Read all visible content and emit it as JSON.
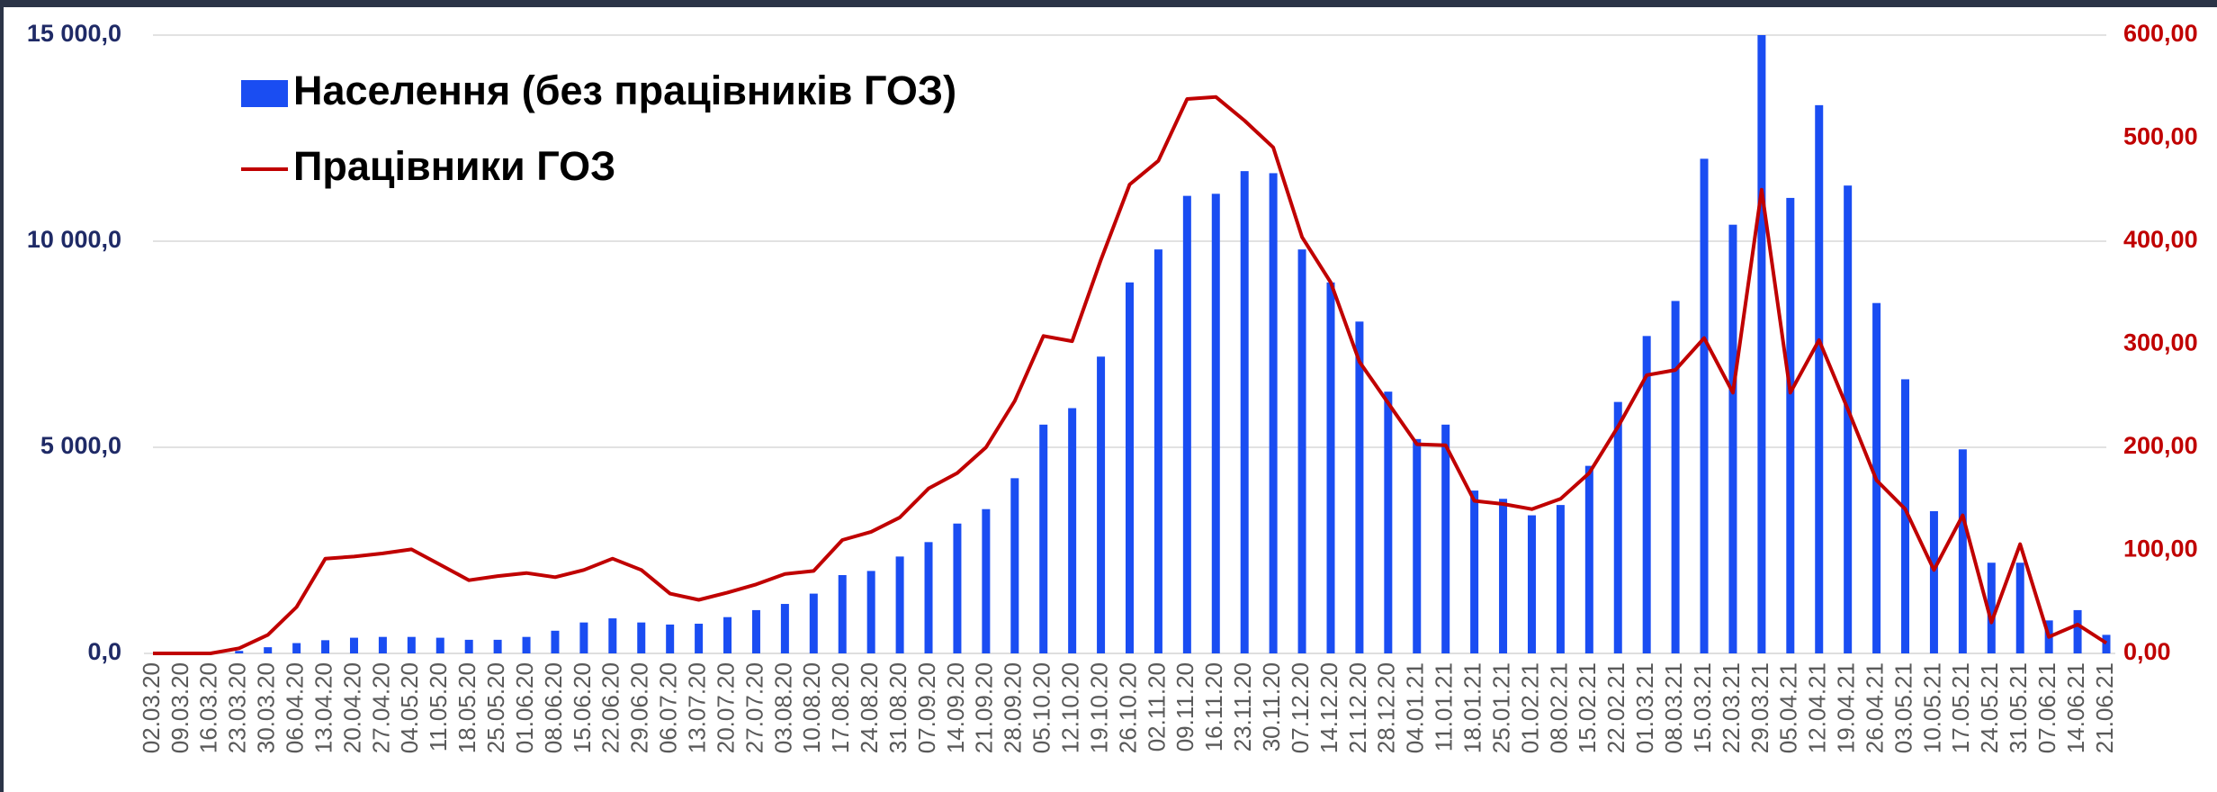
{
  "chart_data": {
    "type": "bar-line",
    "categories": [
      "02.03.20",
      "09.03.20",
      "16.03.20",
      "23.03.20",
      "30.03.20",
      "06.04.20",
      "13.04.20",
      "20.04.20",
      "27.04.20",
      "04.05.20",
      "11.05.20",
      "18.05.20",
      "25.05.20",
      "01.06.20",
      "08.06.20",
      "15.06.20",
      "22.06.20",
      "29.06.20",
      "06.07.20",
      "13.07.20",
      "20.07.20",
      "27.07.20",
      "03.08.20",
      "10.08.20",
      "17.08.20",
      "24.08.20",
      "31.08.20",
      "07.09.20",
      "14.09.20",
      "21.09.20",
      "28.09.20",
      "05.10.20",
      "12.10.20",
      "19.10.20",
      "26.10.20",
      "02.11.20",
      "09.11.20",
      "16.11.20",
      "23.11.20",
      "30.11.20",
      "07.12.20",
      "14.12.20",
      "21.12.20",
      "28.12.20",
      "04.01.21",
      "11.01.21",
      "18.01.21",
      "25.01.21",
      "01.02.21",
      "08.02.21",
      "15.02.21",
      "22.02.21",
      "01.03.21",
      "08.03.21",
      "15.03.21",
      "22.03.21",
      "29.03.21",
      "05.04.21",
      "12.04.21",
      "19.04.21",
      "26.04.21",
      "03.05.21",
      "10.05.21",
      "17.05.21",
      "24.05.21",
      "31.05.21",
      "07.06.21",
      "14.06.21",
      "21.06.21"
    ],
    "series": [
      {
        "name": "Населення (без працівників ГОЗ)",
        "color": "#1a4df2",
        "kind": "bar",
        "axis": "y",
        "values": [
          0,
          0,
          20,
          60,
          150,
          250,
          320,
          380,
          400,
          400,
          380,
          330,
          330,
          400,
          550,
          750,
          850,
          750,
          700,
          720,
          880,
          1050,
          1200,
          1450,
          1900,
          2000,
          2350,
          2700,
          3150,
          3500,
          4250,
          5550,
          5950,
          7200,
          9000,
          9800,
          11100,
          11150,
          11700,
          11650,
          9800,
          9000,
          8050,
          6350,
          5200,
          5550,
          3950,
          3750,
          3350,
          3600,
          4550,
          6100,
          7700,
          8550,
          12000,
          10400,
          15000,
          11050,
          13300,
          11350,
          8500,
          6650,
          3450,
          4950,
          2200,
          2200,
          800,
          1050,
          450
        ]
      },
      {
        "name": "Працівники ГОЗ",
        "color": "#c00000",
        "kind": "line",
        "axis": "y2",
        "values": [
          0,
          0,
          0,
          5,
          18,
          45,
          92,
          94,
          97,
          101,
          86,
          71,
          75,
          78,
          74,
          81,
          92,
          81,
          58,
          52,
          59,
          67,
          77,
          80,
          110,
          118,
          132,
          160,
          175,
          200,
          245,
          308,
          303,
          382,
          455,
          478,
          538,
          540,
          517,
          491,
          404,
          360,
          283,
          243,
          203,
          202,
          148,
          145,
          140,
          150,
          175,
          220,
          270,
          275,
          306,
          253,
          450,
          253,
          304,
          237,
          168,
          140,
          81,
          134,
          30,
          106,
          16,
          28,
          10
        ]
      }
    ],
    "ylim": [
      0,
      15000
    ],
    "yticks": [
      {
        "value": 0,
        "label": "0,0"
      },
      {
        "value": 5000,
        "label": "5 000,0"
      },
      {
        "value": 10000,
        "label": "10 000,0"
      },
      {
        "value": 15000,
        "label": "15 000,0"
      }
    ],
    "y2lim": [
      0,
      600
    ],
    "y2ticks": [
      {
        "value": 0,
        "label": "0,00"
      },
      {
        "value": 100,
        "label": "100,00"
      },
      {
        "value": 200,
        "label": "200,00"
      },
      {
        "value": 300,
        "label": "300,00"
      },
      {
        "value": 400,
        "label": "400,00"
      },
      {
        "value": 500,
        "label": "500,00"
      },
      {
        "value": 600,
        "label": "600,00"
      }
    ],
    "grid": true,
    "legend": "upper left",
    "ytick_color": "#1f2a66",
    "y2tick_color": "#c00000"
  }
}
